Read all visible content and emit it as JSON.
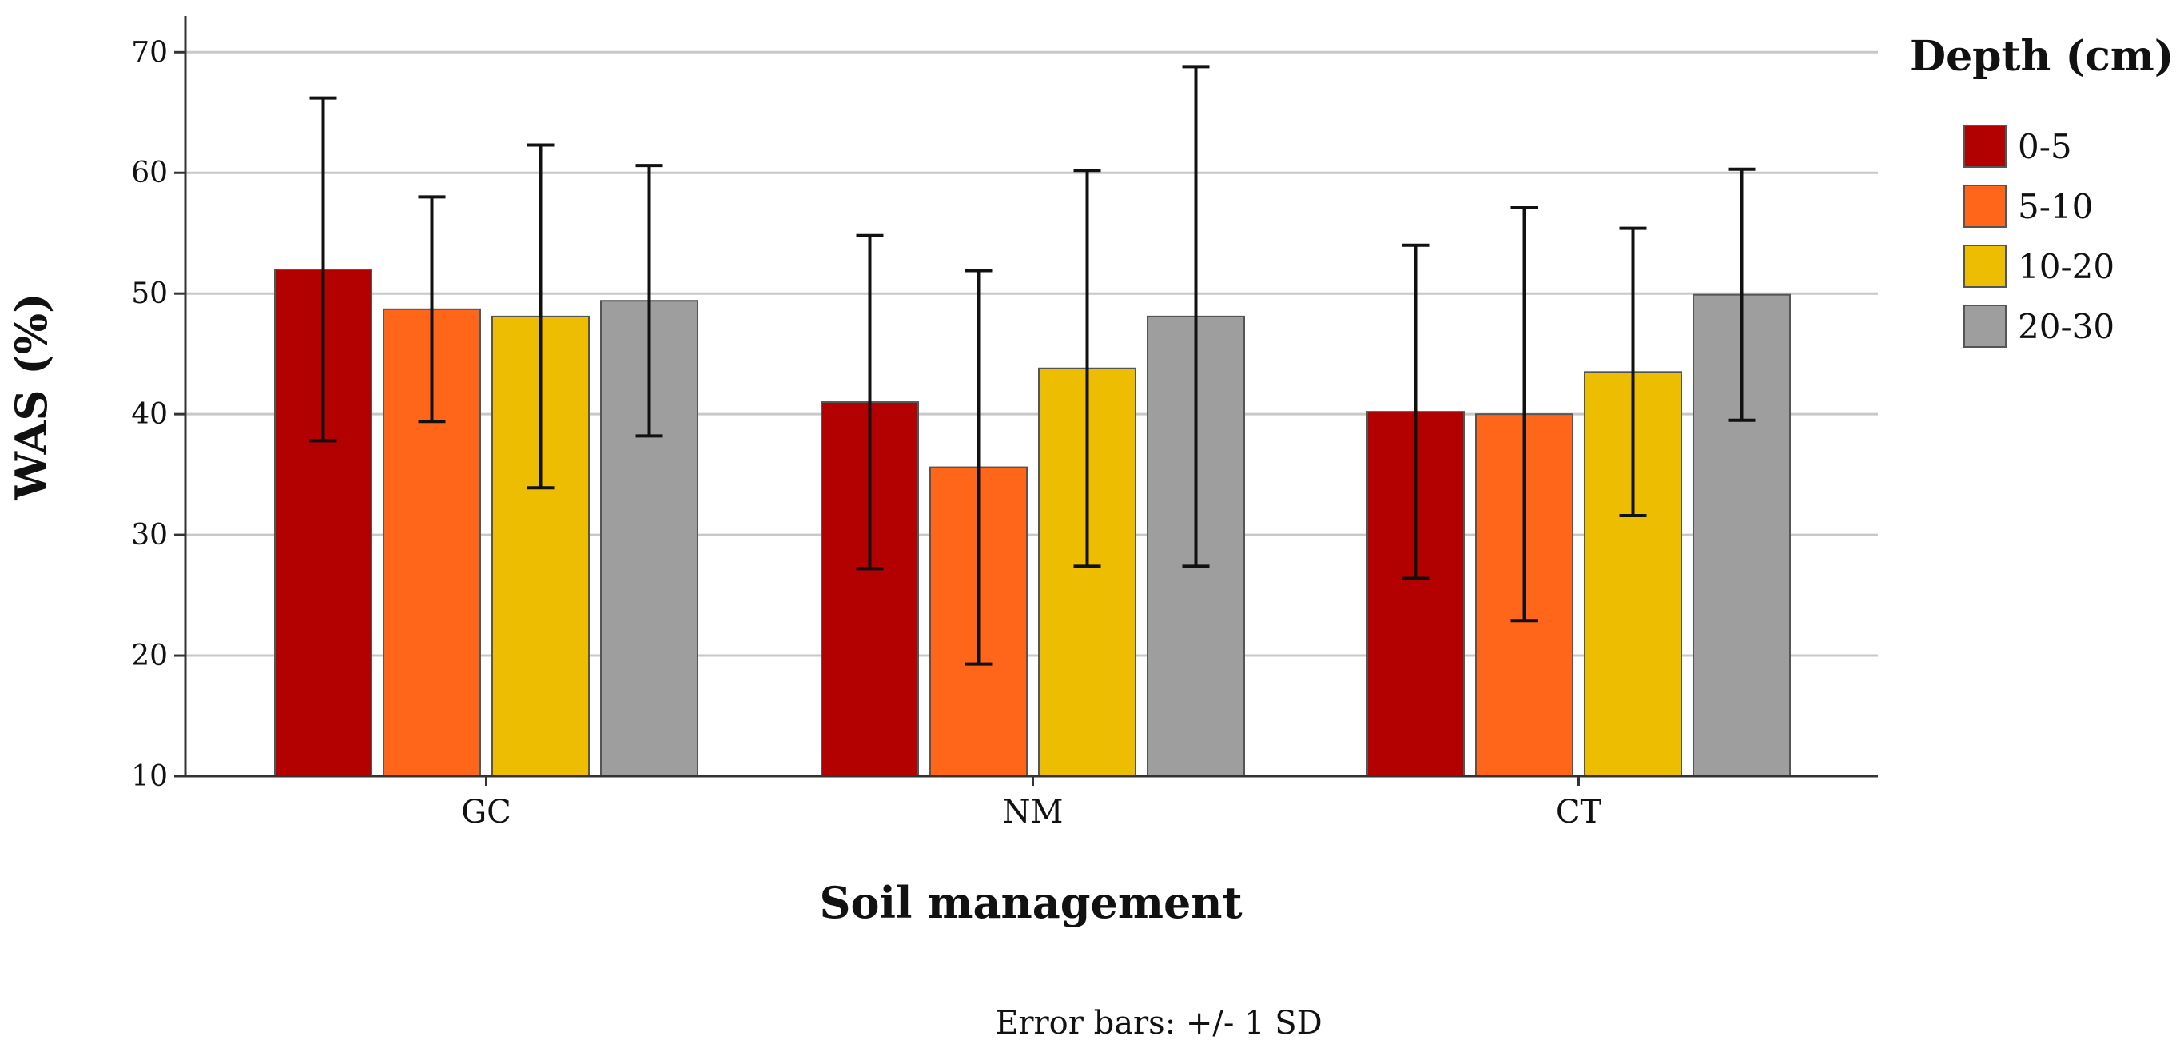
{
  "chart_data": {
    "type": "bar",
    "title": "",
    "xlabel": "Soil management",
    "ylabel": "WAS (%)",
    "ylim": [
      10,
      73
    ],
    "yticks": [
      10,
      20,
      30,
      40,
      50,
      60,
      70
    ],
    "grid": true,
    "categories": [
      "GC",
      "NM",
      "CT"
    ],
    "legend": {
      "title": "Depth (cm)",
      "placement": "right"
    },
    "series": [
      {
        "name": "0-5",
        "color": "#B30000",
        "values": [
          52.0,
          41.0,
          40.2
        ],
        "error": [
          14.2,
          13.8,
          13.8
        ]
      },
      {
        "name": "5-10",
        "color": "#FF661A",
        "values": [
          48.7,
          35.6,
          40.0
        ],
        "error": [
          9.3,
          16.3,
          17.1
        ]
      },
      {
        "name": "10-20",
        "color": "#ECBD00",
        "values": [
          48.1,
          43.8,
          43.5
        ],
        "error": [
          14.2,
          16.4,
          11.9
        ]
      },
      {
        "name": "20-30",
        "color": "#9E9E9E",
        "values": [
          49.4,
          48.1,
          49.9
        ],
        "error": [
          11.2,
          20.7,
          10.4
        ]
      }
    ],
    "footnote": "Error bars: +/- 1 SD"
  }
}
